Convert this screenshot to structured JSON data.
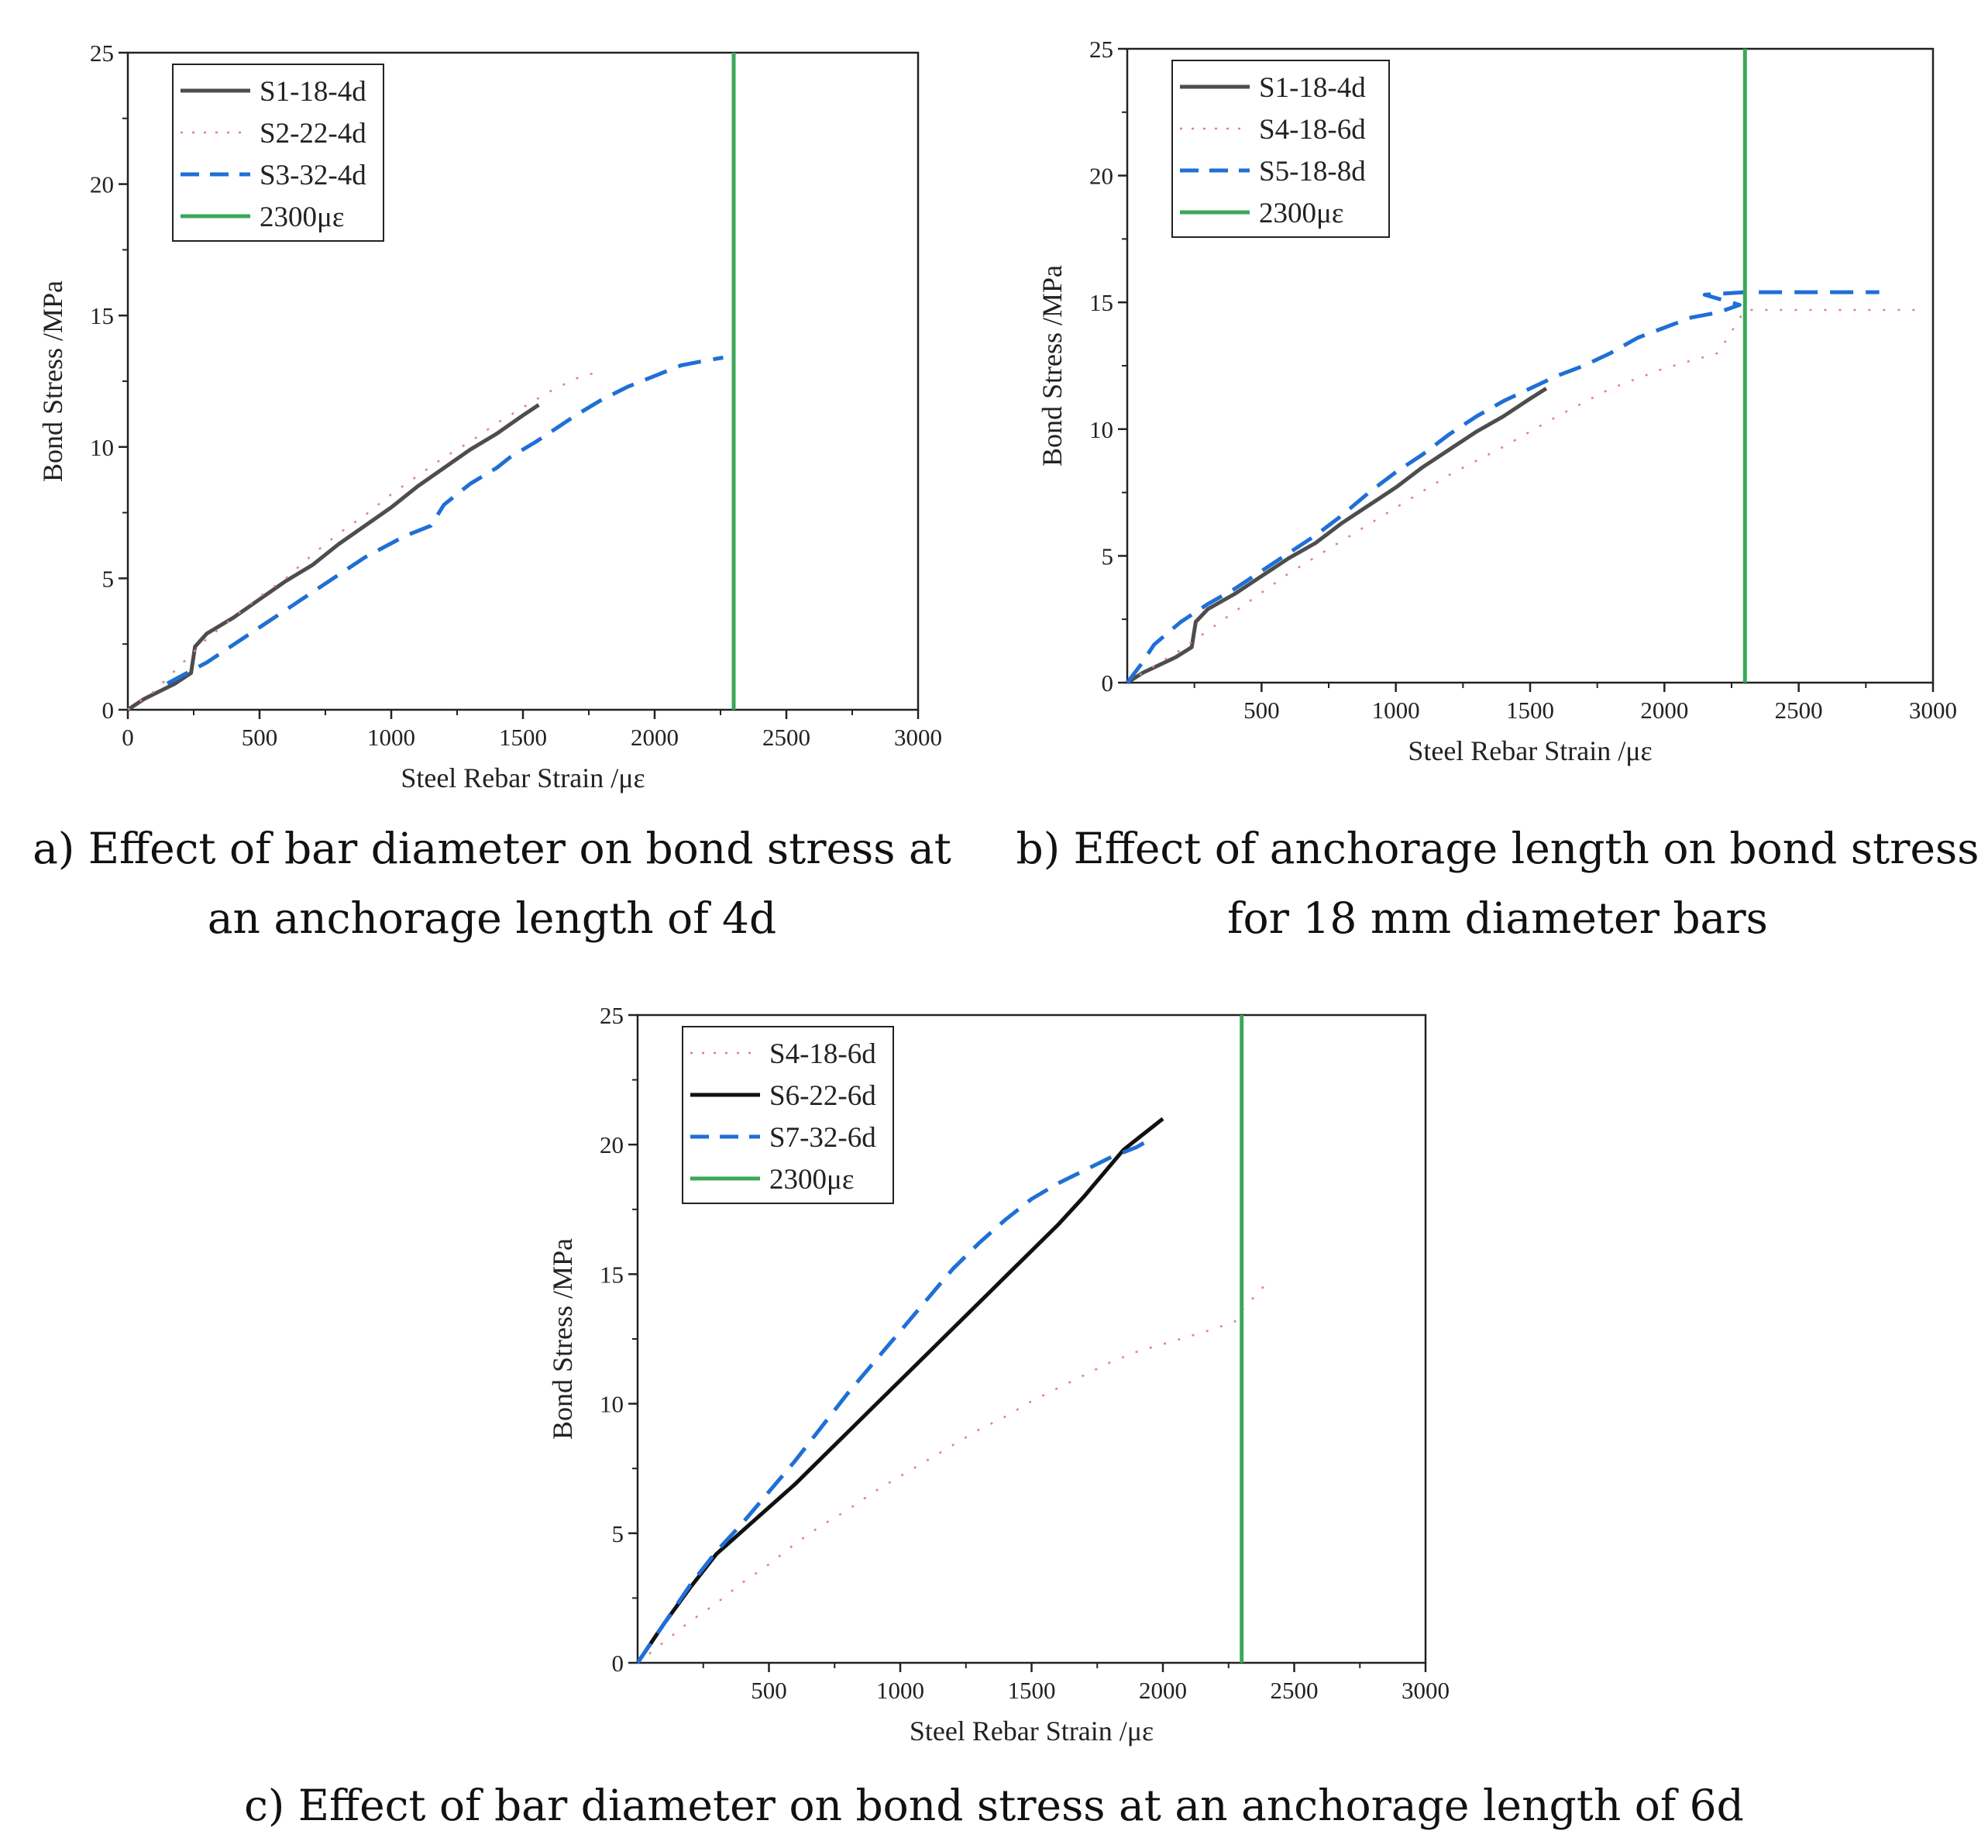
{
  "captions": {
    "a_line1": "a) Effect of bar diameter on bond stress at",
    "a_line2": "an anchorage length of 4d",
    "b_line1": "b) Effect of anchorage length on bond stress",
    "b_line2": "for 18 mm diameter bars",
    "c_line1": "c) Effect of bar diameter on bond stress at an anchorage length of 6d"
  },
  "chart_data": [
    {
      "panel": "a",
      "type": "line",
      "xlabel": "Steel Rebar Strain /με",
      "ylabel": "Bond Stress /MPa",
      "xlim": [
        0,
        3000
      ],
      "ylim": [
        0,
        25
      ],
      "xticks": [
        0,
        500,
        1000,
        1500,
        2000,
        2500,
        3000
      ],
      "yticks": [
        0,
        5,
        10,
        15,
        20,
        25
      ],
      "legend_position": "top-left",
      "series": [
        {
          "name": "S1-18-4d",
          "style": "solid",
          "color": "#4d4d4d",
          "x": [
            0,
            60,
            120,
            180,
            240,
            255,
            300,
            400,
            500,
            600,
            700,
            800,
            900,
            1000,
            1100,
            1200,
            1300,
            1400,
            1500,
            1560
          ],
          "y": [
            0,
            0.4,
            0.7,
            1.0,
            1.4,
            2.4,
            2.9,
            3.5,
            4.2,
            4.9,
            5.5,
            6.3,
            7.0,
            7.7,
            8.5,
            9.2,
            9.9,
            10.5,
            11.2,
            11.6
          ]
        },
        {
          "name": "S2-22-4d",
          "style": "dotted",
          "color": "#e08080",
          "x": [
            0,
            100,
            200,
            300,
            400,
            500,
            600,
            700,
            800,
            900,
            1000,
            1100,
            1200,
            1300,
            1400,
            1500,
            1600,
            1700,
            1800
          ],
          "y": [
            0,
            0.7,
            1.7,
            2.7,
            3.5,
            4.3,
            5.0,
            5.9,
            6.7,
            7.4,
            8.2,
            8.9,
            9.6,
            10.2,
            10.9,
            11.5,
            12.1,
            12.6,
            12.9
          ]
        },
        {
          "name": "S3-32-4d",
          "style": "dashed",
          "color": "#1f6fd6",
          "x": [
            150,
            300,
            450,
            600,
            750,
            900,
            1050,
            1150,
            1200,
            1300,
            1400,
            1450,
            1550,
            1700,
            1800,
            1900,
            2000,
            2100,
            2200,
            2260
          ],
          "y": [
            1.0,
            1.8,
            2.8,
            3.8,
            4.8,
            5.8,
            6.6,
            7.0,
            7.8,
            8.6,
            9.2,
            9.6,
            10.2,
            11.2,
            11.8,
            12.3,
            12.7,
            13.1,
            13.3,
            13.4
          ]
        },
        {
          "name": "2300με",
          "style": "solid",
          "color": "#3aa85a",
          "x": [
            2300,
            2300
          ],
          "y": [
            0,
            25
          ]
        }
      ]
    },
    {
      "panel": "b",
      "type": "line",
      "xlabel": "Steel Rebar Strain /με",
      "ylabel": "Bond Stress /MPa",
      "xlim": [
        0,
        3000
      ],
      "ylim": [
        0,
        25
      ],
      "xticks": [
        500,
        1000,
        1500,
        2000,
        2500,
        3000
      ],
      "yticks": [
        0,
        5,
        10,
        15,
        20,
        25
      ],
      "legend_position": "top-left",
      "series": [
        {
          "name": "S1-18-4d",
          "style": "solid",
          "color": "#4d4d4d",
          "x": [
            0,
            60,
            120,
            180,
            240,
            255,
            300,
            400,
            500,
            600,
            700,
            800,
            900,
            1000,
            1100,
            1200,
            1300,
            1400,
            1500,
            1560
          ],
          "y": [
            0,
            0.4,
            0.7,
            1.0,
            1.4,
            2.4,
            2.9,
            3.5,
            4.2,
            4.9,
            5.5,
            6.3,
            7.0,
            7.7,
            8.5,
            9.2,
            9.9,
            10.5,
            11.2,
            11.6
          ]
        },
        {
          "name": "S4-18-6d",
          "style": "dotted",
          "color": "#e08080",
          "x": [
            0,
            200,
            400,
            600,
            800,
            1000,
            1200,
            1400,
            1600,
            1800,
            2000,
            2200,
            2300,
            2500,
            2700,
            2950
          ],
          "y": [
            0,
            1.3,
            2.8,
            4.3,
            5.6,
            6.9,
            8.2,
            9.3,
            10.5,
            11.6,
            12.4,
            13.0,
            14.7,
            14.7,
            14.7,
            14.7
          ]
        },
        {
          "name": "S5-18-8d",
          "style": "dashed",
          "color": "#1f6fd6",
          "x": [
            0,
            50,
            100,
            200,
            300,
            400,
            500,
            600,
            700,
            800,
            900,
            1000,
            1100,
            1200,
            1300,
            1400,
            1500,
            1600,
            1700,
            1800,
            1900,
            2000,
            2100,
            2200,
            2280,
            2150,
            2300,
            2500,
            2700,
            2800
          ],
          "y": [
            0,
            0.7,
            1.5,
            2.4,
            3.1,
            3.7,
            4.4,
            5.1,
            5.8,
            6.6,
            7.5,
            8.3,
            9.0,
            9.8,
            10.5,
            11.1,
            11.6,
            12.1,
            12.5,
            13.0,
            13.6,
            14.0,
            14.4,
            14.6,
            14.9,
            15.3,
            15.4,
            15.4,
            15.4,
            15.4
          ]
        },
        {
          "name": "2300με",
          "style": "solid",
          "color": "#3aa85a",
          "x": [
            2300,
            2300
          ],
          "y": [
            0,
            25
          ]
        }
      ]
    },
    {
      "panel": "c",
      "type": "line",
      "xlabel": "Steel Rebar Strain /με",
      "ylabel": "Bond Stress /MPa",
      "xlim": [
        0,
        3000
      ],
      "ylim": [
        0,
        25
      ],
      "xticks": [
        500,
        1000,
        1500,
        2000,
        2500,
        3000
      ],
      "yticks": [
        0,
        5,
        10,
        15,
        20,
        25
      ],
      "legend_position": "top-left",
      "series": [
        {
          "name": "S4-18-6d",
          "style": "dotted",
          "color": "#e08080",
          "x": [
            0,
            100,
            200,
            300,
            400,
            500,
            600,
            700,
            800,
            900,
            1000,
            1100,
            1200,
            1300,
            1400,
            1500,
            1600,
            1700,
            1800,
            1900,
            2000,
            2100,
            2200,
            2280,
            2300,
            2400
          ],
          "y": [
            0,
            0.8,
            1.6,
            2.3,
            3.1,
            3.8,
            4.6,
            5.3,
            5.9,
            6.6,
            7.2,
            7.8,
            8.4,
            9.0,
            9.5,
            10.1,
            10.6,
            11.1,
            11.6,
            12.0,
            12.3,
            12.6,
            12.9,
            13.2,
            13.6,
            14.7
          ]
        },
        {
          "name": "S6-22-6d",
          "style": "solid",
          "color": "#111111",
          "x": [
            0,
            100,
            200,
            300,
            400,
            500,
            600,
            700,
            800,
            900,
            1000,
            1100,
            1200,
            1300,
            1400,
            1500,
            1600,
            1700,
            1800,
            1850,
            1900,
            1950,
            2000
          ],
          "y": [
            0,
            1.5,
            2.9,
            4.2,
            5.1,
            6.0,
            6.9,
            7.9,
            8.9,
            9.9,
            10.9,
            11.9,
            12.9,
            13.9,
            14.9,
            15.9,
            16.9,
            18.0,
            19.2,
            19.8,
            20.2,
            20.6,
            21.0
          ]
        },
        {
          "name": "S7-32-6d",
          "style": "dashed",
          "color": "#1f6fd6",
          "x": [
            0,
            100,
            200,
            300,
            400,
            500,
            600,
            700,
            800,
            900,
            1000,
            1100,
            1200,
            1300,
            1400,
            1500,
            1600,
            1700,
            1800,
            1900,
            1950
          ],
          "y": [
            0,
            1.5,
            3.0,
            4.3,
            5.4,
            6.6,
            7.8,
            9.1,
            10.4,
            11.6,
            12.8,
            14.0,
            15.2,
            16.2,
            17.1,
            17.9,
            18.5,
            19.0,
            19.5,
            19.9,
            20.2
          ]
        },
        {
          "name": "2300με",
          "style": "solid",
          "color": "#3aa85a",
          "x": [
            2300,
            2300
          ],
          "y": [
            0,
            25
          ]
        }
      ]
    }
  ]
}
